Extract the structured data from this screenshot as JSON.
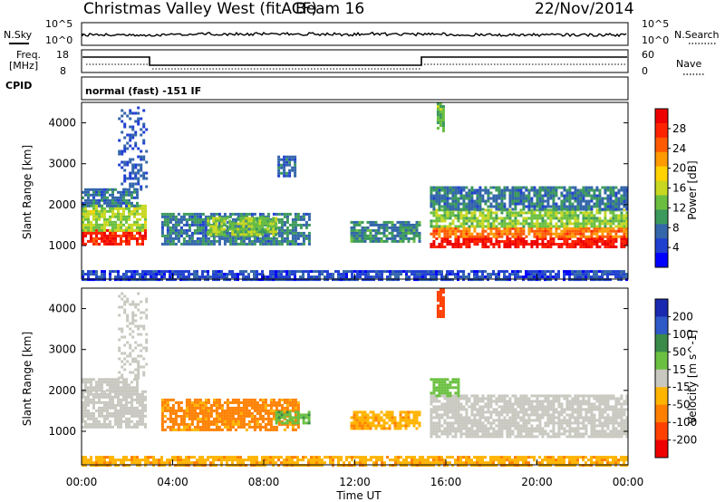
{
  "header": {
    "station": "Christmas Valley West (fitACF)",
    "beam": "Beam 16",
    "date": "22/Nov/2014"
  },
  "strip": {
    "nsky_label": "N.Sky",
    "nsearch_label": "N.Search",
    "noise_left_ticks": [
      "10^5",
      "10^0"
    ],
    "noise_right_ticks": [
      "10^5",
      "10^0"
    ],
    "freq_label": "Freq.",
    "freq_unit": "[MHz]",
    "freq_ticks": [
      "18",
      "8"
    ],
    "nave_label": "Nave",
    "nave_ticks": [
      "60",
      "0"
    ],
    "cpid_label": "CPID",
    "cpid_value": "normal (fast) -151 IF"
  },
  "chart_data": [
    {
      "type": "heatmap",
      "panel": "power",
      "xlabel": "",
      "ylabel": "Slant Range [km]",
      "colorbar_label": "Power [dB]",
      "x_range_hours": [
        0,
        24
      ],
      "y_range_km": [
        180,
        4500
      ],
      "y_ticks": [
        1000,
        2000,
        3000,
        4000
      ],
      "colorbar_ticks": [
        "4",
        "8",
        "12",
        "16",
        "20",
        "24",
        "28"
      ],
      "colorbar_colors": [
        "#0000ff",
        "#2040d0",
        "#3366aa",
        "#3c9a5c",
        "#6abf40",
        "#c8d820",
        "#ffd200",
        "#ff9a00",
        "#ff5a00",
        "#ff2200",
        "#ee0000"
      ],
      "regions": [
        {
          "t": [
            0.0,
            2.8
          ],
          "r": [
            1050,
            1400
          ],
          "level": 26
        },
        {
          "t": [
            0.0,
            2.8
          ],
          "r": [
            1400,
            2000
          ],
          "level": 14
        },
        {
          "t": [
            0.0,
            2.4
          ],
          "r": [
            2000,
            2400
          ],
          "level": 8
        },
        {
          "t": [
            1.6,
            2.9
          ],
          "r": [
            2400,
            4400
          ],
          "level": 6
        },
        {
          "t": [
            3.5,
            10.0
          ],
          "r": [
            1050,
            1800
          ],
          "level": 8
        },
        {
          "t": [
            5.5,
            8.5
          ],
          "r": [
            1300,
            1700
          ],
          "level": 13
        },
        {
          "t": [
            11.8,
            14.8
          ],
          "r": [
            1100,
            1600
          ],
          "level": 9
        },
        {
          "t": [
            8.6,
            9.4
          ],
          "r": [
            2700,
            3200
          ],
          "level": 7
        },
        {
          "t": [
            15.3,
            24.0
          ],
          "r": [
            950,
            1200
          ],
          "level": 27
        },
        {
          "t": [
            15.3,
            24.0
          ],
          "r": [
            1200,
            1450
          ],
          "level": 22
        },
        {
          "t": [
            15.3,
            24.0
          ],
          "r": [
            1450,
            1900
          ],
          "level": 13
        },
        {
          "t": [
            15.3,
            24.0
          ],
          "r": [
            1900,
            2450
          ],
          "level": 8
        },
        {
          "t": [
            15.6,
            15.9
          ],
          "r": [
            3800,
            4500
          ],
          "level": 12
        },
        {
          "t": [
            0.0,
            24.0
          ],
          "r": [
            180,
            400
          ],
          "level": 5
        }
      ]
    },
    {
      "type": "heatmap",
      "panel": "velocity",
      "xlabel": "Time UT",
      "ylabel": "Slant Range [km]",
      "colorbar_label": "Velocity [m s^-1]",
      "x_range_hours": [
        0,
        24
      ],
      "x_ticks": [
        "00:00",
        "04:00",
        "08:00",
        "12:00",
        "16:00",
        "20:00",
        "00:00"
      ],
      "y_range_km": [
        180,
        4500
      ],
      "y_ticks": [
        1000,
        2000,
        3000,
        4000
      ],
      "colorbar_ticks": [
        "200",
        "100",
        "50",
        "15",
        "-15",
        "-50",
        "-100",
        "-200"
      ],
      "colorbar_colors": [
        "#1a2ab0",
        "#2e5ac8",
        "#3a8a4a",
        "#6ac040",
        "#c8c8c0",
        "#ffb400",
        "#ff8000",
        "#ff4000",
        "#ee0000"
      ],
      "regions": [
        {
          "t": [
            0.0,
            2.8
          ],
          "r": [
            1100,
            2000
          ],
          "v": 0
        },
        {
          "t": [
            0.0,
            2.4
          ],
          "r": [
            2000,
            2300
          ],
          "v": 0
        },
        {
          "t": [
            1.6,
            2.9
          ],
          "r": [
            2300,
            4400
          ],
          "v": 0
        },
        {
          "t": [
            3.5,
            9.5
          ],
          "r": [
            1050,
            1800
          ],
          "v": -60
        },
        {
          "t": [
            8.5,
            10.0
          ],
          "r": [
            1200,
            1500
          ],
          "v": 40
        },
        {
          "t": [
            11.8,
            14.8
          ],
          "r": [
            1100,
            1500
          ],
          "v": -40
        },
        {
          "t": [
            15.3,
            24.0
          ],
          "r": [
            850,
            1900
          ],
          "v": 0
        },
        {
          "t": [
            15.3,
            16.5
          ],
          "r": [
            1900,
            2300
          ],
          "v": 30
        },
        {
          "t": [
            15.6,
            15.9
          ],
          "r": [
            3800,
            4500
          ],
          "v": -150
        },
        {
          "t": [
            0.0,
            24.0
          ],
          "r": [
            180,
            400
          ],
          "v": -40
        }
      ]
    }
  ]
}
